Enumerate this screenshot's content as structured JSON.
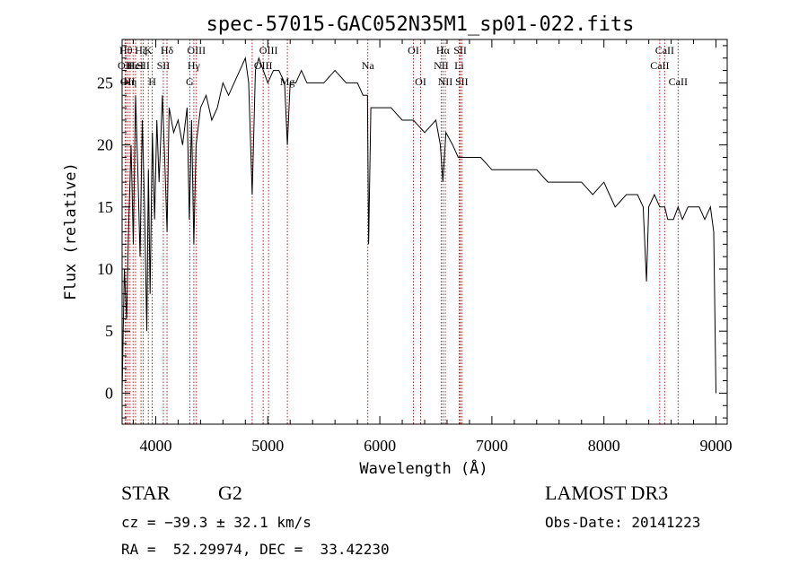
{
  "chart_data": {
    "type": "line",
    "title": "spec-57015-GAC052N35M1_sp01-022.fits",
    "xlabel": "Wavelength (Å)",
    "ylabel": "Flux (relative)",
    "xlim": [
      3700,
      9100
    ],
    "ylim": [
      -2.5,
      28.5
    ],
    "xticks": [
      4000,
      5000,
      6000,
      7000,
      8000,
      9000
    ],
    "yticks": [
      0,
      5,
      10,
      15,
      20,
      25
    ],
    "series": [
      {
        "name": "flux",
        "x": [
          3700,
          3720,
          3740,
          3760,
          3780,
          3800,
          3820,
          3840,
          3860,
          3880,
          3900,
          3920,
          3935,
          3950,
          3970,
          3990,
          4010,
          4030,
          4060,
          4080,
          4101,
          4120,
          4160,
          4200,
          4240,
          4280,
          4300,
          4320,
          4340,
          4360,
          4400,
          4450,
          4500,
          4550,
          4600,
          4650,
          4700,
          4750,
          4800,
          4830,
          4861,
          4890,
          4920,
          4960,
          5000,
          5050,
          5100,
          5150,
          5175,
          5200,
          5250,
          5300,
          5350,
          5400,
          5500,
          5600,
          5700,
          5800,
          5850,
          5890,
          5900,
          5920,
          5950,
          6000,
          6100,
          6200,
          6300,
          6400,
          6500,
          6540,
          6563,
          6590,
          6650,
          6700,
          6800,
          6900,
          7000,
          7100,
          7200,
          7300,
          7400,
          7500,
          7600,
          7700,
          7800,
          7900,
          8000,
          8050,
          8100,
          8200,
          8300,
          8350,
          8380,
          8400,
          8450,
          8498,
          8542,
          8570,
          8620,
          8662,
          8700,
          8750,
          8800,
          8850,
          8900,
          8950,
          8980,
          9000
        ],
        "y": [
          0,
          10,
          6,
          14,
          20,
          12,
          24,
          18,
          11,
          22,
          15,
          5,
          18,
          8,
          21,
          14,
          22,
          17,
          24,
          19,
          13,
          23,
          21,
          22,
          20,
          23,
          14,
          22,
          12,
          20,
          23,
          24,
          22,
          23,
          25,
          24,
          25,
          26,
          27,
          25,
          16,
          26,
          27,
          26,
          25,
          26,
          26,
          25,
          20,
          25,
          25,
          26,
          25,
          25,
          25,
          26,
          25,
          25,
          24,
          24,
          12,
          23,
          23,
          23,
          23,
          22,
          22,
          21,
          22,
          20,
          17,
          21,
          20,
          19,
          19,
          19,
          18,
          18,
          18,
          18,
          18,
          17,
          17,
          17,
          17,
          16,
          17,
          16,
          15,
          16,
          16,
          15,
          9,
          15,
          16,
          15,
          15,
          14,
          14,
          15,
          14,
          15,
          15,
          15,
          14,
          15,
          13,
          0
        ]
      }
    ],
    "lines": [
      {
        "wl": 3727,
        "label": "OII",
        "row": 2
      },
      {
        "wl": 3734,
        "label": "Hθ",
        "row": 1
      },
      {
        "wl": 3750,
        "label": "OII",
        "row": 3
      },
      {
        "wl": 3771,
        "label": "Hη",
        "row": 3
      },
      {
        "wl": 3798,
        "label": "Hε",
        "row": 2
      },
      {
        "wl": 3820,
        "label": "HeI",
        "row": 2
      },
      {
        "wl": 3869,
        "label": "Hζ",
        "row": 1
      },
      {
        "wl": 3889,
        "label": "SII",
        "row": 2
      },
      {
        "wl": 3934,
        "label": "K",
        "row": 1
      },
      {
        "wl": 3969,
        "label": "H",
        "row": 3
      },
      {
        "wl": 4101,
        "label": "Hδ",
        "row": 1
      },
      {
        "wl": 4068,
        "label": "SII",
        "row": 2
      },
      {
        "wl": 4304,
        "label": "G",
        "row": 3
      },
      {
        "wl": 4340,
        "label": "Hγ",
        "row": 2
      },
      {
        "wl": 4363,
        "label": "OIII",
        "row": 1
      },
      {
        "wl": 4861,
        "label": "",
        "row": 0
      },
      {
        "wl": 4959,
        "label": "OIII",
        "row": 2
      },
      {
        "wl": 5007,
        "label": "OIII",
        "row": 1
      },
      {
        "wl": 5175,
        "label": "Mg",
        "row": 4
      },
      {
        "wl": 5893,
        "label": "Na",
        "row": 2
      },
      {
        "wl": 6300,
        "label": "OI",
        "row": 1
      },
      {
        "wl": 6364,
        "label": "OI",
        "row": 3
      },
      {
        "wl": 6548,
        "label": "NII",
        "row": 2
      },
      {
        "wl": 6563,
        "label": "Hα",
        "row": 1
      },
      {
        "wl": 6584,
        "label": "NII",
        "row": 3
      },
      {
        "wl": 6708,
        "label": "Li",
        "row": 2
      },
      {
        "wl": 6717,
        "label": "SII",
        "row": 1
      },
      {
        "wl": 6731,
        "label": "SII",
        "row": 3
      },
      {
        "wl": 8498,
        "label": "CaII",
        "row": 2
      },
      {
        "wl": 8542,
        "label": "CaII",
        "row": 1
      },
      {
        "wl": 8662,
        "label": "CaII",
        "row": 3
      }
    ]
  },
  "info": {
    "class": "STAR",
    "subclass": "G2",
    "survey": "LAMOST DR3",
    "cz": "cz = −39.3 ± 32.1 km/s",
    "obs_date": "Obs-Date: 20141223",
    "coords": "RA =  52.29974, DEC =  33.42230"
  }
}
